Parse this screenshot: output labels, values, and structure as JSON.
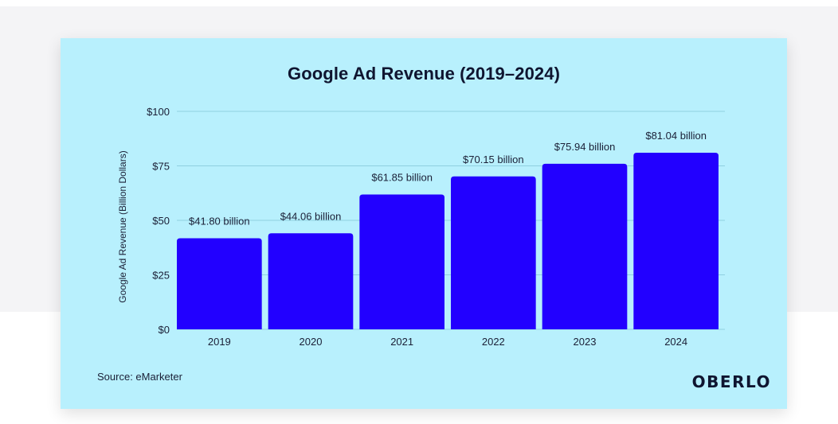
{
  "colors": {
    "page_band": "#f4f4f6",
    "card": "#b8f0fd",
    "bar": "#2200ff",
    "grid": "#8fcfe0",
    "text": "#0f1530"
  },
  "source": "Source: eMarketer",
  "brand": "OBERLO",
  "chart_data": {
    "type": "bar",
    "title": "Google Ad Revenue (2019–2024)",
    "xlabel": "",
    "ylabel": "Google Ad Revenue (Billion Dollars)",
    "categories": [
      "2019",
      "2020",
      "2021",
      "2022",
      "2023",
      "2024"
    ],
    "values": [
      41.8,
      44.06,
      61.85,
      70.15,
      75.94,
      81.04
    ],
    "data_labels": [
      "$41.80 billion",
      "$44.06 billion",
      "$61.85 billion",
      "$70.15 billion",
      "$75.94 billion",
      "$81.04 billion"
    ],
    "yticks": [
      0,
      25,
      50,
      75,
      100
    ],
    "ytick_labels": [
      "$0",
      "$25",
      "$50",
      "$75",
      "$100"
    ],
    "ylim": [
      0,
      100
    ],
    "grid": true,
    "legend": "none"
  }
}
